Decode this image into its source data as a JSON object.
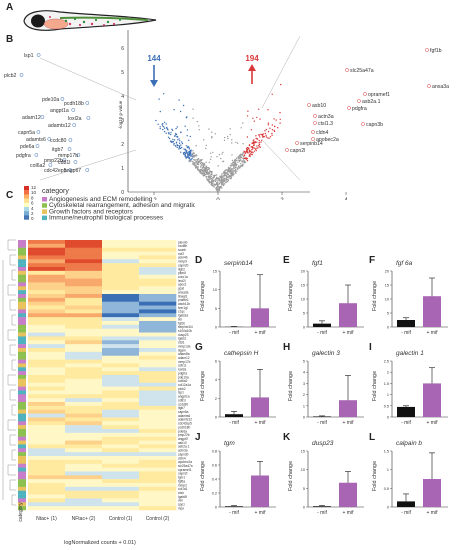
{
  "panel_labels": {
    "a": "A",
    "b": "B",
    "c": "C",
    "d": "D",
    "e": "E",
    "f": "F",
    "g": "G",
    "h": "H",
    "i": "I",
    "j": "J",
    "k": "K",
    "l": "L"
  },
  "colors": {
    "up": "#d9383a",
    "down": "#3b6fb5",
    "bar_purple": "#a865b4",
    "bar_black": "#111111"
  },
  "volcano": {
    "xlabel": "logFoldChange",
    "ylabel": "-log10 p-value",
    "down_count": "144",
    "up_count": "194",
    "x_ticks": [
      "-2",
      "0",
      "2",
      "4"
    ],
    "y_ticks": [
      "6",
      "5",
      "4",
      "3",
      "2",
      "1",
      "0"
    ],
    "left_genes": [
      "lsp1",
      "plcb2",
      "pde10a",
      "pcdh18b",
      "angpt1a",
      "adam12",
      "loxl2a",
      "adamts12",
      "capn5a",
      "adamts6",
      "pde6a",
      "ccdc80",
      "itgb7",
      "mmp17b",
      "pdgfra",
      "pmp22b",
      "col6a2",
      "cd81l",
      "cdc42ep5",
      "angptl7"
    ],
    "right_genes": [
      "fgf1b",
      "anxa3a",
      "slc25a47a",
      "asb10",
      "opramef1",
      "asb2a.1",
      "pdgfra",
      "actn3a",
      "ctsl1.3",
      "capn3b",
      "cldn4",
      "apobec2a",
      "serpinb14",
      "capn2l"
    ]
  },
  "heatmap": {
    "legend_title": "category",
    "scale_ticks": [
      "12",
      "10",
      "8",
      "6",
      "4",
      "2",
      "0"
    ],
    "categories": [
      "Angiogenesis and ECM remodelling",
      "Cytoskeletal rearrangement, adhesion and migration",
      "Growth factors and receptors",
      "Immune/neutrophil biological processes"
    ],
    "category_colors": [
      "#c77dca",
      "#8cc152",
      "#e8c25c",
      "#4fb3bf"
    ],
    "columns": [
      "Ntac+ (1)",
      "NFtac+ (2)",
      "Control (1)",
      "Control (2)"
    ],
    "xlabel": "logNormalized counts + 0.01)",
    "side_label": "category",
    "genes": [
      "plexnb",
      "cxcl8b",
      "scarb",
      "ncf2",
      "ackr4b",
      "mmp9",
      "capn2b",
      "itgb2",
      "ptpn6",
      "coro1a",
      "lect2l",
      "apoc1",
      "gcat",
      "anxa3a",
      "tinagl1",
      "prame1",
      "abcb11b",
      "fcer1gl",
      "c1qc",
      "lgals3a",
      "txn",
      "fgf1b",
      "serpinb1l4",
      "s100a10b",
      "dusp23",
      "lgals1",
      "ctsl1",
      "mmp13a",
      "itgam",
      "adam8a",
      "adam12",
      "mmp17b",
      "cdh11",
      "loxl2a",
      "pdgfra",
      "pde10a",
      "col6a2",
      "col12a1a",
      "plcb2",
      "lsp1",
      "angpt1a",
      "cd81l",
      "ccdc80",
      "itgb7",
      "capn5a",
      "adamts6",
      "adamts12",
      "cdc42ep5",
      "pcdh18b",
      "pde6a",
      "pmp22b",
      "angptl7",
      "asb10",
      "asb2a.1",
      "actn3a",
      "capn3b",
      "cldn4",
      "apobec2a",
      "slc25a47a",
      "opramef1",
      "capn2l",
      "tgm1",
      "fgf6a",
      "mmp2",
      "col1a1",
      "ctsh",
      "lgals9l",
      "vim",
      "spp1",
      "mpx"
    ]
  },
  "bar_charts": [
    {
      "gene": "serpinb14",
      "neg_label": "- mif",
      "pos_label": "+ mif",
      "ylabel": "Fold change",
      "values": [
        0.05,
        5.0
      ],
      "errors": [
        0.1,
        9.0
      ],
      "ymax": 15,
      "yticks": [
        0,
        5,
        10,
        15
      ]
    },
    {
      "gene": "fgf1",
      "neg_label": "- mif",
      "pos_label": "+ mif",
      "ylabel": "Fold change",
      "values": [
        1.2,
        8.5
      ],
      "errors": [
        1.0,
        6.5
      ],
      "ymax": 20,
      "yticks": [
        0,
        5,
        10,
        15,
        20
      ]
    },
    {
      "gene": "fgf 6a",
      "neg_label": "- mif",
      "pos_label": "+ mif",
      "ylabel": "Fold change",
      "values": [
        2.5,
        11
      ],
      "errors": [
        0.8,
        6.5
      ],
      "ymax": 20,
      "yticks": [
        0,
        5,
        10,
        15,
        20
      ]
    },
    {
      "gene": "cathepsin H",
      "neg_label": "- mif",
      "pos_label": "+ mif",
      "ylabel": "Fold change",
      "values": [
        0.3,
        2.1
      ],
      "errors": [
        0.3,
        3.0
      ],
      "ymax": 6,
      "yticks": [
        0,
        2,
        4,
        6
      ]
    },
    {
      "gene": "galectin 3",
      "neg_label": "- mif",
      "pos_label": "+ mif",
      "ylabel": "Fold change",
      "values": [
        0.05,
        1.5
      ],
      "errors": [
        0.05,
        2.2
      ],
      "ymax": 5,
      "yticks": [
        0,
        1,
        2,
        3,
        4,
        5
      ]
    },
    {
      "gene": "galectin 1",
      "neg_label": "- mif",
      "pos_label": "+ mif",
      "ylabel": "Fold change",
      "values": [
        0.45,
        1.5
      ],
      "errors": [
        0.05,
        0.7
      ],
      "ymax": 2.5,
      "yticks": [
        0,
        0.5,
        1,
        1.5,
        2,
        2.5
      ]
    },
    {
      "gene": "tgm",
      "neg_label": "- mif",
      "pos_label": "+ mif",
      "ylabel": "Fold change",
      "values": [
        0.01,
        0.45
      ],
      "errors": [
        0.01,
        0.2
      ],
      "ymax": 0.8,
      "yticks": [
        0,
        0.2,
        0.4,
        0.6,
        0.8
      ]
    },
    {
      "gene": "dusp23",
      "neg_label": "- mif",
      "pos_label": "+ mif",
      "ylabel": "Fold change",
      "values": [
        0.2,
        6.5
      ],
      "errors": [
        0.2,
        3.0
      ],
      "ymax": 15,
      "yticks": [
        0,
        5,
        10,
        15
      ]
    },
    {
      "gene": "calpain b",
      "neg_label": "- mif",
      "pos_label": "+ mif",
      "ylabel": "Fold change",
      "values": [
        0.15,
        0.75
      ],
      "errors": [
        0.2,
        0.7
      ],
      "ymax": 1.5,
      "yticks": [
        0,
        0.5,
        1,
        1.5
      ]
    }
  ]
}
